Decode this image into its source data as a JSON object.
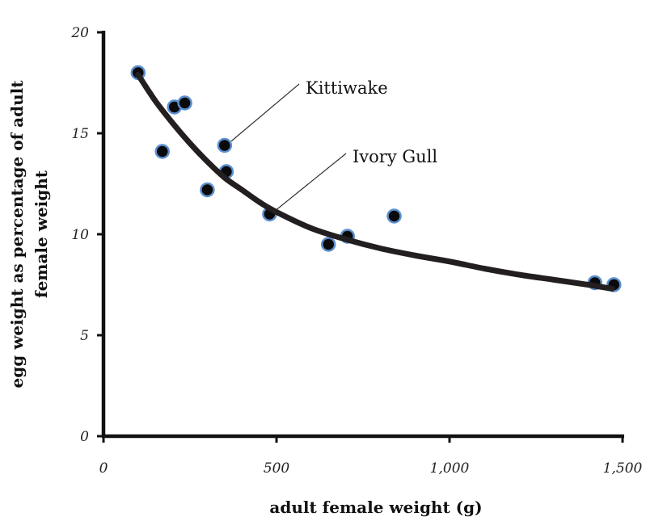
{
  "chart_data": {
    "type": "scatter",
    "xlabel": "adult female weight (g)",
    "ylabel_lines": [
      "egg weight as percentage of adult",
      "female weight"
    ],
    "xlim": [
      0,
      1500
    ],
    "ylim": [
      0,
      20
    ],
    "x_ticks": [
      0,
      500,
      1000,
      1500
    ],
    "x_tick_labels": [
      "0",
      "500",
      "1,000",
      "1,500"
    ],
    "y_ticks": [
      0,
      5,
      10,
      15,
      20
    ],
    "y_tick_labels": [
      "0",
      "5",
      "10",
      "15",
      "20"
    ],
    "grid": false,
    "legend": "none",
    "points": [
      {
        "x": 100,
        "y": 18.0
      },
      {
        "x": 170,
        "y": 14.1
      },
      {
        "x": 205,
        "y": 16.3
      },
      {
        "x": 235,
        "y": 16.5
      },
      {
        "x": 300,
        "y": 12.2
      },
      {
        "x": 350,
        "y": 14.4
      },
      {
        "x": 355,
        "y": 13.1
      },
      {
        "x": 480,
        "y": 11.0
      },
      {
        "x": 650,
        "y": 9.5
      },
      {
        "x": 705,
        "y": 9.9
      },
      {
        "x": 840,
        "y": 10.9
      },
      {
        "x": 1420,
        "y": 7.6
      },
      {
        "x": 1475,
        "y": 7.5
      }
    ],
    "trend_line": {
      "x": [
        100,
        150,
        200,
        250,
        300,
        350,
        400,
        450,
        500,
        600,
        700,
        800,
        900,
        1000,
        1100,
        1200,
        1300,
        1400,
        1470
      ],
      "y": [
        17.9,
        16.6,
        15.5,
        14.5,
        13.6,
        12.8,
        12.2,
        11.6,
        11.1,
        10.3,
        9.75,
        9.3,
        8.95,
        8.65,
        8.3,
        8.0,
        7.75,
        7.5,
        7.3
      ]
    },
    "annotations": [
      {
        "text": "Kittiwake",
        "point_x": 350,
        "point_y": 14.4
      },
      {
        "text": "Ivory Gull",
        "point_x": 480,
        "point_y": 11.0
      }
    ],
    "colors": {
      "point_fill": "#0a0a0a",
      "point_outline": "#5b8fd0",
      "trend_line": "#231f20",
      "axis": "#111111"
    }
  }
}
